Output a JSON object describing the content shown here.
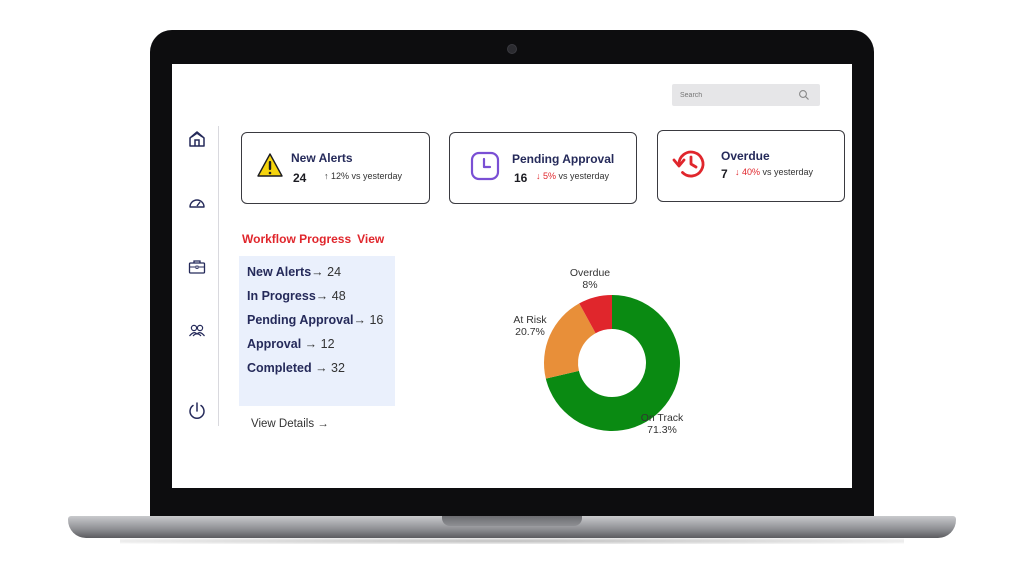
{
  "colors": {
    "navy": "#252a5a",
    "alert_red": "#e0262c",
    "warning_yellow": "#f5d40e",
    "clock_purple": "#7a4fd4",
    "on_track_green": "#0a8a12",
    "at_risk_orange": "#e88f39",
    "overdue_red": "#e0262c",
    "panel_bg": "#eaf0fc"
  },
  "search": {
    "placeholder": "Search",
    "icon": "magnifier-icon"
  },
  "sidebar": {
    "items": [
      {
        "name": "home",
        "icon": "home-icon"
      },
      {
        "name": "dashboard",
        "icon": "gauge-icon"
      },
      {
        "name": "cases",
        "icon": "briefcase-icon"
      },
      {
        "name": "team",
        "icon": "users-icon"
      },
      {
        "name": "logout",
        "icon": "power-icon"
      }
    ]
  },
  "cards": [
    {
      "title": "New Alerts",
      "count": "24",
      "delta": "↑ 12% vs yesterday",
      "icon": "warning-icon"
    },
    {
      "title": "Pending Approval",
      "count": "16",
      "delta_arrow": "↓ 5%",
      "delta_text": " vs yesterday",
      "icon": "clock-icon"
    },
    {
      "title": "Overdue",
      "count": "7",
      "delta_arrow": "↓ 40%",
      "delta_text": " vs yesterday",
      "icon": "history-icon"
    }
  ],
  "workflow": {
    "title": "Workflow Progress",
    "view_link": "View",
    "rows": [
      {
        "label": "New Alerts",
        "value": "→ 24"
      },
      {
        "label": "In Progress",
        "value": "→ 48"
      },
      {
        "label": "Pending Approval",
        "value": "→ 16"
      },
      {
        "label": "Approval",
        "value": " → 12"
      },
      {
        "label": "Completed",
        "value": " → 32"
      }
    ],
    "view_details": "View Details →"
  },
  "chart_data": {
    "type": "pie",
    "donut": true,
    "title": "",
    "slices": [
      {
        "label": "On Track",
        "value": 71.3,
        "value_label": "71.3%",
        "color": "#0a8a12"
      },
      {
        "label": "At Risk",
        "value": 20.7,
        "value_label": "20.7%",
        "color": "#e88f39"
      },
      {
        "label": "Overdue",
        "value": 8,
        "value_label": "8%",
        "color": "#e0262c"
      }
    ]
  }
}
